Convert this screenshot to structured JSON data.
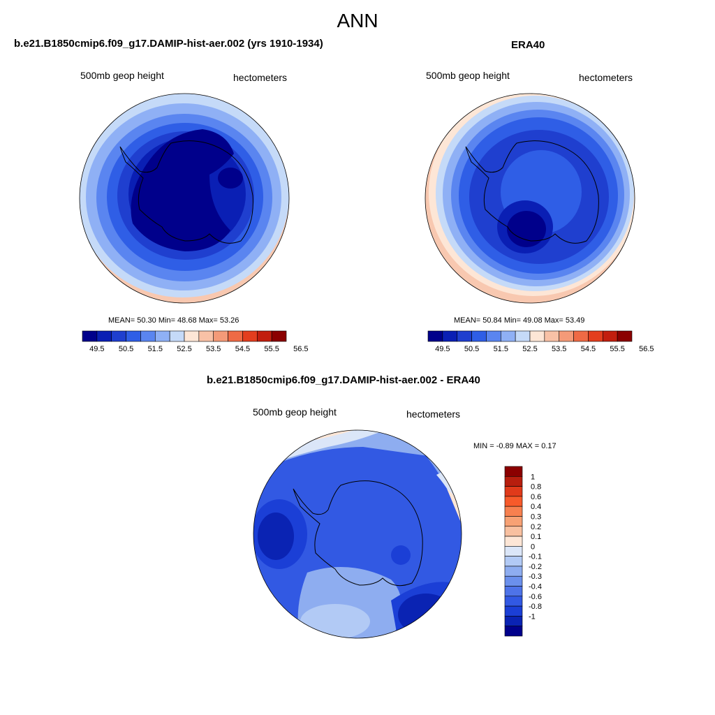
{
  "title": "ANN",
  "panels": [
    {
      "title": "b.e21.B1850cmip6.f09_g17.DAMIP-hist-aer.002 (yrs 1910-1934)",
      "field": "500mb geop height",
      "units": "hectometers",
      "stats": "MEAN=  50.30  Min=  48.68  Max=  53.26",
      "mean": 50.3,
      "min": 48.68,
      "max": 53.26
    },
    {
      "title": "ERA40",
      "field": "500mb geop height",
      "units": "hectometers",
      "stats": "MEAN=  50.84  Min=  49.08  Max=  53.49",
      "mean": 50.84,
      "min": 49.08,
      "max": 53.49
    },
    {
      "title": "b.e21.B1850cmip6.f09_g17.DAMIP-hist-aer.002 - ERA40",
      "field": "500mb geop height",
      "units": "hectometers",
      "stats": "MIN =  -0.89 MAX =   0.17",
      "min": -0.89,
      "max": 0.17
    }
  ],
  "colorbar_abs": {
    "colors": [
      "#00008b",
      "#0a1fb4",
      "#1f3fcf",
      "#2f5ee6",
      "#5a85f0",
      "#8fb0f5",
      "#c5daf8",
      "#fde6d6",
      "#f8c1a6",
      "#f49a78",
      "#ef6a45",
      "#e33e1e",
      "#c21e0e",
      "#8b0000"
    ],
    "labels": [
      "49.5",
      "50.5",
      "51.5",
      "52.5",
      "53.5",
      "54.5",
      "55.5",
      "56.5"
    ]
  },
  "colorbar_diff": {
    "colors": [
      "#8b0000",
      "#b71e0e",
      "#e03a1a",
      "#f75a2a",
      "#f7804f",
      "#f7a174",
      "#f8c0a0",
      "#fde6d6",
      "#dbe6f8",
      "#b2caf5",
      "#8eadf0",
      "#6b90ec",
      "#4e73e8",
      "#3259e3",
      "#1b3fd6",
      "#0a23b3",
      "#00008b"
    ],
    "labels": [
      "1",
      "0.8",
      "0.6",
      "0.4",
      "0.3",
      "0.2",
      "0.1",
      "0",
      "-0.1",
      "-0.2",
      "-0.3",
      "-0.4",
      "-0.6",
      "-0.8",
      "-1"
    ]
  }
}
